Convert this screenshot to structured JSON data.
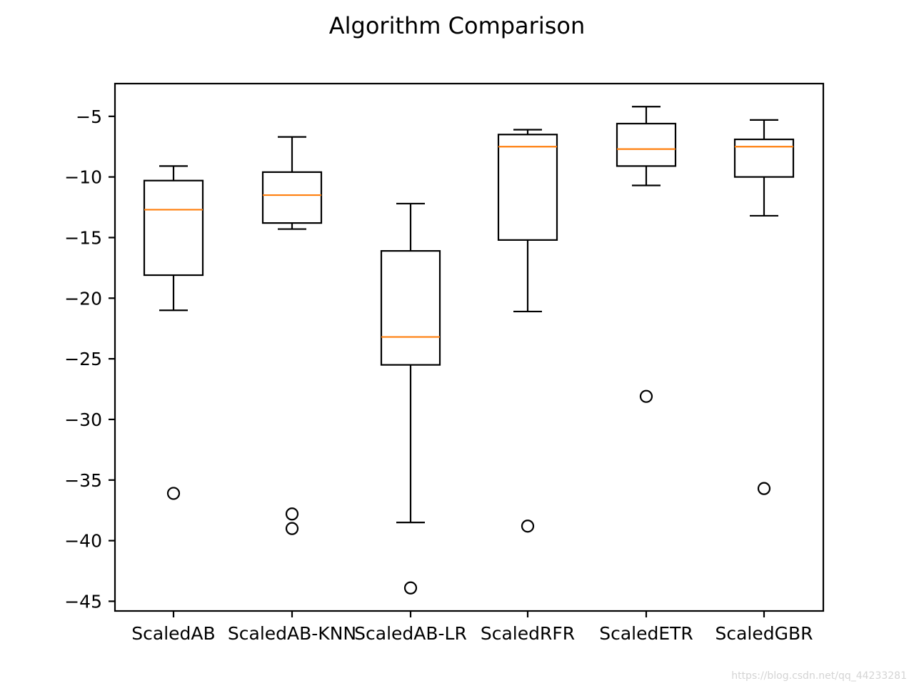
{
  "watermark": "https://blog.csdn.net/qq_44233281",
  "chart_data": {
    "type": "boxplot",
    "title": "Algorithm Comparison",
    "xlabel": "",
    "ylabel": "",
    "ylim": [
      -45.8,
      -2.3
    ],
    "yticks": [
      -5,
      -10,
      -15,
      -20,
      -25,
      -30,
      -35,
      -40,
      -45
    ],
    "grid": false,
    "median_color": "#ff7f0e",
    "box_color": "#000000",
    "categories": [
      "ScaledAB",
      "ScaledAB-KNN",
      "ScaledAB-LR",
      "ScaledRFR",
      "ScaledETR",
      "ScaledGBR"
    ],
    "boxes": [
      {
        "name": "ScaledAB",
        "whisker_low": -21.0,
        "q1": -18.1,
        "median": -12.7,
        "q3": -10.3,
        "whisker_high": -9.1,
        "outliers": [
          -36.1
        ]
      },
      {
        "name": "ScaledAB-KNN",
        "whisker_low": -14.3,
        "q1": -13.8,
        "median": -11.5,
        "q3": -9.6,
        "whisker_high": -6.7,
        "outliers": [
          -37.8,
          -39.0
        ]
      },
      {
        "name": "ScaledAB-LR",
        "whisker_low": -38.5,
        "q1": -25.5,
        "median": -23.2,
        "q3": -16.1,
        "whisker_high": -12.2,
        "outliers": [
          -43.9
        ]
      },
      {
        "name": "ScaledRFR",
        "whisker_low": -21.1,
        "q1": -15.2,
        "median": -7.5,
        "q3": -6.5,
        "whisker_high": -6.1,
        "outliers": [
          -38.8
        ]
      },
      {
        "name": "ScaledETR",
        "whisker_low": -10.7,
        "q1": -9.1,
        "median": -7.7,
        "q3": -5.6,
        "whisker_high": -4.2,
        "outliers": [
          -28.1
        ]
      },
      {
        "name": "ScaledGBR",
        "whisker_low": -13.2,
        "q1": -10.0,
        "median": -7.5,
        "q3": -6.9,
        "whisker_high": -5.3,
        "outliers": [
          -35.7
        ]
      }
    ]
  }
}
